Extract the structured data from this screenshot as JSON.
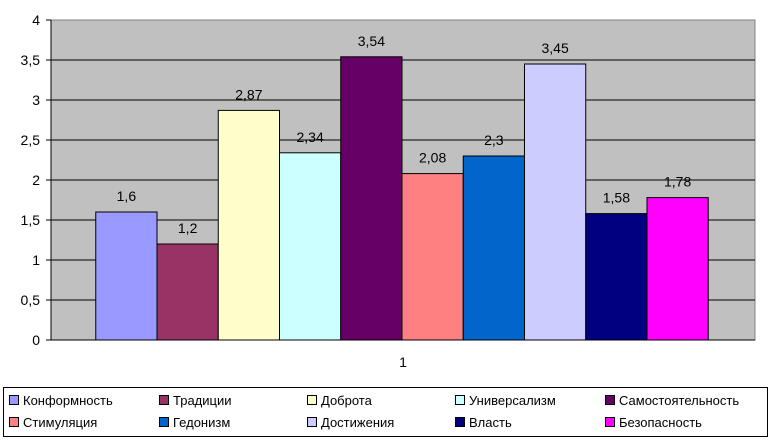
{
  "chart_data": {
    "type": "bar",
    "categories": [
      "1"
    ],
    "ylim": [
      0,
      4
    ],
    "yticks": [
      "0",
      "0,5",
      "1",
      "1,5",
      "2",
      "2,5",
      "3",
      "3,5",
      "4"
    ],
    "grid": true,
    "legend_position": "bottom",
    "series": [
      {
        "name": "Конформность",
        "value": 1.6,
        "label": "1,6",
        "color": "#9999ff"
      },
      {
        "name": "Традиции",
        "value": 1.2,
        "label": "1,2",
        "color": "#993366"
      },
      {
        "name": "Доброта",
        "value": 2.87,
        "label": "2,87",
        "color": "#ffffcc"
      },
      {
        "name": "Универсализм",
        "value": 2.34,
        "label": "2,34",
        "color": "#ccffff"
      },
      {
        "name": "Самостоятельность",
        "value": 3.54,
        "label": "3,54",
        "color": "#660066"
      },
      {
        "name": "Стимуляция",
        "value": 2.08,
        "label": "2,08",
        "color": "#ff8080"
      },
      {
        "name": "Гедонизм",
        "value": 2.3,
        "label": "2,3",
        "color": "#0066cc"
      },
      {
        "name": "Достижения",
        "value": 3.45,
        "label": "3,45",
        "color": "#ccccff"
      },
      {
        "name": "Власть",
        "value": 1.58,
        "label": "1,58",
        "color": "#000080"
      },
      {
        "name": "Безопасность",
        "value": 1.78,
        "label": "1,78",
        "color": "#ff00ff"
      }
    ],
    "plot_background": "#c0c0c0"
  }
}
